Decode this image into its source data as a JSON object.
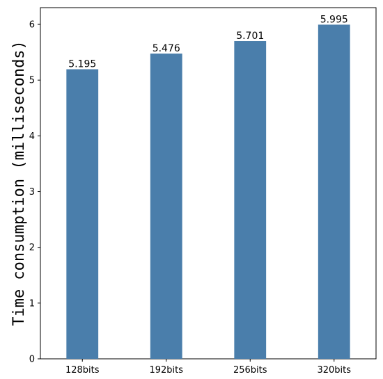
{
  "chart_data": {
    "type": "bar",
    "categories": [
      "128bits",
      "192bits",
      "256bits",
      "320bits"
    ],
    "values": [
      5.195,
      5.476,
      5.701,
      5.995
    ],
    "value_labels": [
      "5.195",
      "5.476",
      "5.701",
      "5.995"
    ],
    "title": "",
    "xlabel": "",
    "ylabel": "Time consumption (milliseconds)",
    "ylim": [
      0,
      6.3
    ],
    "yticks": [
      0,
      1,
      2,
      3,
      4,
      5,
      6
    ],
    "grid": false,
    "bar_color": "#4a7eab"
  }
}
